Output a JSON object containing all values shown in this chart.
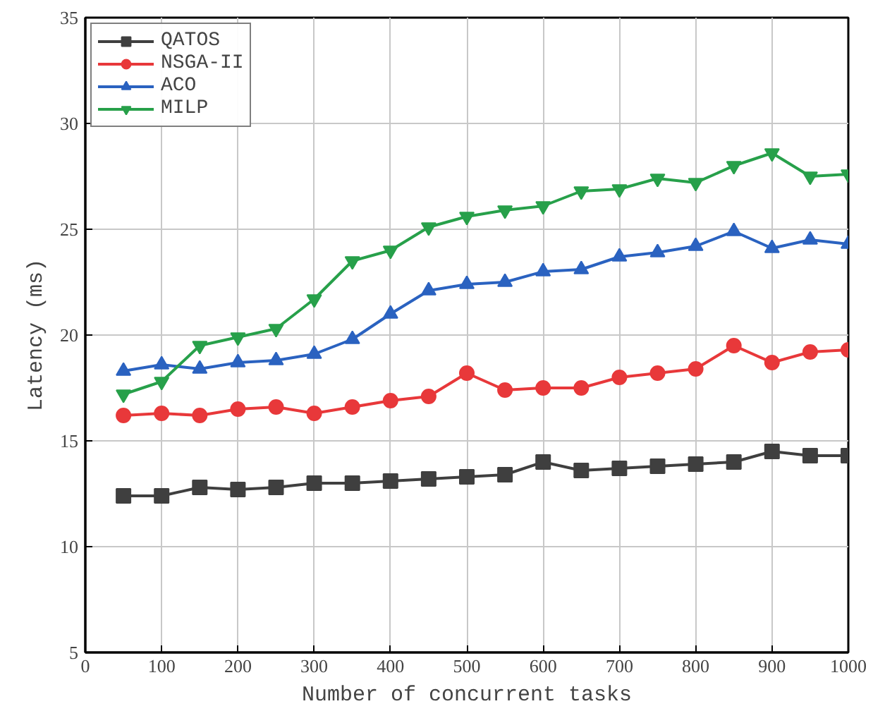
{
  "chart_data": {
    "type": "line",
    "xlabel": "Number of concurrent tasks",
    "ylabel": "Latency (ms)",
    "x": [
      50,
      100,
      150,
      200,
      250,
      300,
      350,
      400,
      450,
      500,
      550,
      600,
      650,
      700,
      750,
      800,
      850,
      900,
      950,
      1000
    ],
    "series": [
      {
        "name": "QATOS",
        "color": "#3f3f3f",
        "marker": "square",
        "values": [
          12.4,
          12.4,
          12.8,
          12.7,
          12.8,
          13.0,
          13.0,
          13.1,
          13.2,
          13.3,
          13.4,
          14.0,
          13.6,
          13.7,
          13.8,
          13.9,
          14.0,
          14.5,
          14.3,
          14.3
        ]
      },
      {
        "name": "NSGA-II",
        "color": "#e8383a",
        "marker": "circle",
        "values": [
          16.2,
          16.3,
          16.2,
          16.5,
          16.6,
          16.3,
          16.6,
          16.9,
          17.1,
          18.2,
          17.4,
          17.5,
          17.5,
          18.0,
          18.2,
          18.4,
          19.5,
          18.7,
          19.2,
          19.3
        ]
      },
      {
        "name": "ACO",
        "color": "#2a62c0",
        "marker": "triangle",
        "values": [
          18.3,
          18.6,
          18.4,
          18.7,
          18.8,
          19.1,
          19.8,
          21.0,
          22.1,
          22.4,
          22.5,
          23.0,
          23.1,
          23.7,
          23.9,
          24.2,
          24.9,
          24.1,
          24.5,
          24.3
        ]
      },
      {
        "name": "MILP",
        "color": "#27a04a",
        "marker": "triangle",
        "values": [
          17.2,
          17.8,
          19.5,
          19.9,
          20.3,
          21.7,
          23.5,
          24.0,
          25.1,
          25.6,
          25.9,
          26.1,
          26.8,
          26.9,
          27.4,
          27.2,
          28.0,
          28.6,
          27.5,
          27.6
        ]
      }
    ],
    "xlim": [
      0,
      1000
    ],
    "xticks": [
      0,
      100,
      200,
      300,
      400,
      500,
      600,
      700,
      800,
      900,
      1000
    ],
    "ylim": [
      5,
      35
    ],
    "yticks": [
      5,
      10,
      15,
      20,
      25,
      30,
      35
    ],
    "grid": true,
    "legend": "top left",
    "line_style": "solid"
  }
}
